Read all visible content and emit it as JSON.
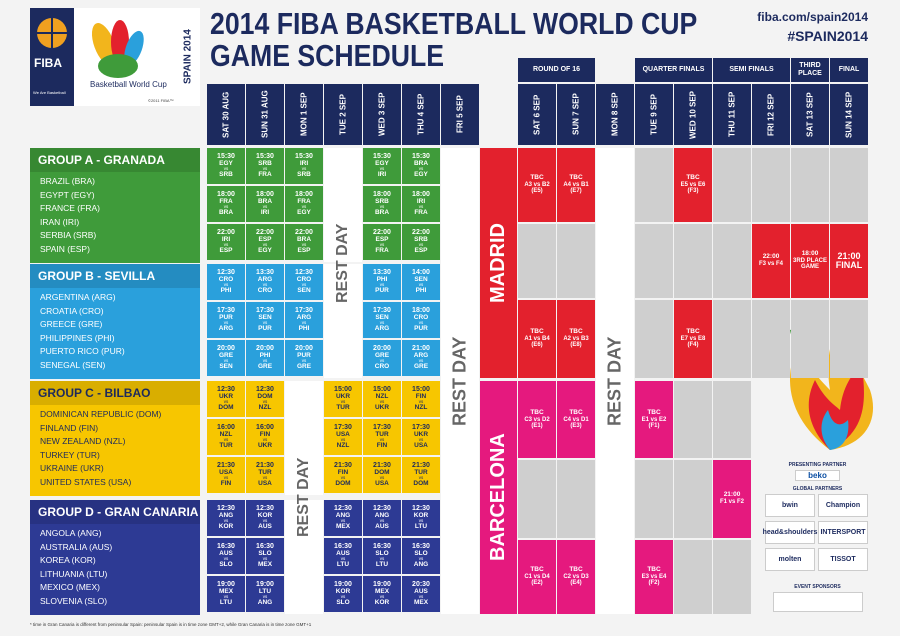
{
  "header": {
    "title_line1": "2014 FIBA BASKETBALL WORLD CUP",
    "title_line2": "GAME SCHEDULE",
    "website": "fiba.com/spain2014",
    "hashtag": "#SPAIN2014",
    "logo": {
      "brand": "FIBA",
      "tagline": "We Are Basketball",
      "event": "Basketball World Cup",
      "host": "SPAIN 2014",
      "copyright": "©2011 FIBA™"
    }
  },
  "rounds": [
    "ROUND OF 16",
    "QUARTER FINALS",
    "SEMI FINALS",
    "THIRD PLACE",
    "FINAL"
  ],
  "days": [
    "SAT 30 AUG",
    "SUN 31 AUG",
    "MON 1 SEP",
    "TUE 2 SEP",
    "WED 3 SEP",
    "THU 4 SEP",
    "FRI 5 SEP",
    "SAT 6 SEP",
    "SUN 7 SEP",
    "MON 8 SEP",
    "TUE 9 SEP",
    "WED 10 SEP",
    "THU 11 SEP",
    "FRI 12 SEP",
    "SAT 13 SEP",
    "SUN 14 SEP"
  ],
  "vs": "vs",
  "rest_day": "REST DAY",
  "groups": [
    {
      "name": "GROUP A - GRANADA",
      "color": "#3f9b3a",
      "text_color": "#ffffff",
      "teams": [
        "BRAZIL (BRA)",
        "EGYPT (EGY)",
        "FRANCE (FRA)",
        "IRAN (IRI)",
        "SERBIA (SRB)",
        "SPAIN (ESP)"
      ],
      "games": [
        [
          {
            "time": "15:30",
            "teams": [
              "EGY",
              "SRB"
            ]
          },
          {
            "time": "18:00",
            "teams": [
              "FRA",
              "BRA"
            ]
          },
          {
            "time": "22:00",
            "teams": [
              "IRI",
              "ESP"
            ]
          }
        ],
        [
          {
            "time": "15:30",
            "teams": [
              "SRB",
              "FRA"
            ]
          },
          {
            "time": "18:00",
            "teams": [
              "BRA",
              "IRI"
            ]
          },
          {
            "time": "22:00",
            "teams": [
              "ESP",
              "EGY"
            ]
          }
        ],
        [
          {
            "time": "15:30",
            "teams": [
              "IRI",
              "SRB"
            ]
          },
          {
            "time": "18:00",
            "teams": [
              "FRA",
              "EGY"
            ]
          },
          {
            "time": "22:00",
            "teams": [
              "BRA",
              "ESP"
            ]
          }
        ],
        null,
        [
          {
            "time": "15:30",
            "teams": [
              "EGY",
              "IRI"
            ]
          },
          {
            "time": "18:00",
            "teams": [
              "SRB",
              "BRA"
            ]
          },
          {
            "time": "22:00",
            "teams": [
              "ESP",
              "FRA"
            ]
          }
        ],
        [
          {
            "time": "15:30",
            "teams": [
              "BRA",
              "EGY"
            ]
          },
          {
            "time": "18:00",
            "teams": [
              "IRI",
              "FRA"
            ]
          },
          {
            "time": "22:00",
            "teams": [
              "SRB",
              "ESP"
            ]
          }
        ]
      ]
    },
    {
      "name": "GROUP B - SEVILLA",
      "color": "#2aa0dc",
      "text_color": "#ffffff",
      "teams": [
        "ARGENTINA (ARG)",
        "CROATIA (CRO)",
        "GREECE (GRE)",
        "PHILIPPINES (PHI)",
        "PUERTO RICO (PUR)",
        "SENEGAL (SEN)"
      ],
      "games": [
        [
          {
            "time": "12:30",
            "teams": [
              "CRO",
              "PHI"
            ]
          },
          {
            "time": "17:30",
            "teams": [
              "PUR",
              "ARG"
            ]
          },
          {
            "time": "20:00",
            "teams": [
              "GRE",
              "SEN"
            ]
          }
        ],
        [
          {
            "time": "13:30",
            "teams": [
              "ARG",
              "CRO"
            ]
          },
          {
            "time": "17:30",
            "teams": [
              "SEN",
              "PUR"
            ]
          },
          {
            "time": "20:00",
            "teams": [
              "PHI",
              "GRE"
            ]
          }
        ],
        [
          {
            "time": "12:30",
            "teams": [
              "CRO",
              "SEN"
            ]
          },
          {
            "time": "17:30",
            "teams": [
              "ARG",
              "PHI"
            ]
          },
          {
            "time": "20:00",
            "teams": [
              "PUR",
              "GRE"
            ]
          }
        ],
        null,
        [
          {
            "time": "13:30",
            "teams": [
              "PHI",
              "PUR"
            ]
          },
          {
            "time": "17:30",
            "teams": [
              "SEN",
              "ARG"
            ]
          },
          {
            "time": "20:00",
            "teams": [
              "GRE",
              "CRO"
            ]
          }
        ],
        [
          {
            "time": "14:00",
            "teams": [
              "SEN",
              "PHI"
            ]
          },
          {
            "time": "18:00",
            "teams": [
              "CRO",
              "PUR"
            ]
          },
          {
            "time": "21:00",
            "teams": [
              "ARG",
              "GRE"
            ]
          }
        ]
      ]
    },
    {
      "name": "GROUP C - BILBAO",
      "color": "#f7c600",
      "text_color": "#1d2a5c",
      "teams": [
        "DOMINICAN REPUBLIC (DOM)",
        "FINLAND (FIN)",
        "NEW ZEALAND (NZL)",
        "TURKEY (TUR)",
        "UKRAINE (UKR)",
        "UNITED STATES (USA)"
      ],
      "games": [
        [
          {
            "time": "12:30",
            "teams": [
              "UKR",
              "DOM"
            ]
          },
          {
            "time": "16:00",
            "teams": [
              "NZL",
              "TUR"
            ]
          },
          {
            "time": "21:30",
            "teams": [
              "USA",
              "FIN"
            ]
          }
        ],
        [
          {
            "time": "12:30",
            "teams": [
              "DOM",
              "NZL"
            ]
          },
          {
            "time": "16:00",
            "teams": [
              "FIN",
              "UKR"
            ]
          },
          {
            "time": "21:30",
            "teams": [
              "TUR",
              "USA"
            ]
          }
        ],
        null,
        [
          {
            "time": "15:00",
            "teams": [
              "UKR",
              "TUR"
            ]
          },
          {
            "time": "17:30",
            "teams": [
              "USA",
              "NZL"
            ]
          },
          {
            "time": "21:30",
            "teams": [
              "FIN",
              "DOM"
            ]
          }
        ],
        [
          {
            "time": "15:00",
            "teams": [
              "NZL",
              "UKR"
            ]
          },
          {
            "time": "17:30",
            "teams": [
              "TUR",
              "FIN"
            ]
          },
          {
            "time": "21:30",
            "teams": [
              "DOM",
              "USA"
            ]
          }
        ],
        [
          {
            "time": "15:00",
            "teams": [
              "FIN",
              "NZL"
            ]
          },
          {
            "time": "17:30",
            "teams": [
              "UKR",
              "USA"
            ]
          },
          {
            "time": "21:30",
            "teams": [
              "TUR",
              "DOM"
            ]
          }
        ]
      ]
    },
    {
      "name": "GROUP D - GRAN CANARIA",
      "color": "#2d3a94",
      "text_color": "#ffffff",
      "teams": [
        "ANGOLA (ANG)",
        "AUSTRALIA (AUS)",
        "KOREA (KOR)",
        "LITHUANIA (LTU)",
        "MEXICO (MEX)",
        "SLOVENIA (SLO)"
      ],
      "games": [
        [
          {
            "time": "12:30",
            "teams": [
              "ANG",
              "KOR"
            ]
          },
          {
            "time": "16:30",
            "teams": [
              "AUS",
              "SLO"
            ]
          },
          {
            "time": "19:00",
            "teams": [
              "MEX",
              "LTU"
            ]
          }
        ],
        [
          {
            "time": "12:30",
            "teams": [
              "KOR",
              "AUS"
            ]
          },
          {
            "time": "16:30",
            "teams": [
              "SLO",
              "MEX"
            ]
          },
          {
            "time": "19:00",
            "teams": [
              "LTU",
              "ANG"
            ]
          }
        ],
        null,
        [
          {
            "time": "12:30",
            "teams": [
              "ANG",
              "MEX"
            ]
          },
          {
            "time": "16:30",
            "teams": [
              "AUS",
              "LTU"
            ]
          },
          {
            "time": "19:00",
            "teams": [
              "KOR",
              "SLO"
            ]
          }
        ],
        [
          {
            "time": "12:30",
            "teams": [
              "ANG",
              "AUS"
            ]
          },
          {
            "time": "16:30",
            "teams": [
              "SLO",
              "LTU"
            ]
          },
          {
            "time": "19:00",
            "teams": [
              "MEX",
              "KOR"
            ]
          }
        ],
        [
          {
            "time": "12:30",
            "teams": [
              "KOR",
              "LTU"
            ]
          },
          {
            "time": "16:30",
            "teams": [
              "SLO",
              "ANG"
            ]
          },
          {
            "time": "20:30",
            "teams": [
              "AUS",
              "MEX"
            ]
          }
        ]
      ]
    }
  ],
  "madrid": {
    "label": "MADRID",
    "color": "#e3212d",
    "round_of_16": [
      {
        "time": "TBC",
        "match": "A3 vs B2",
        "code": "(E5)"
      },
      {
        "time": "TBC",
        "match": "A4 vs B1",
        "code": "(E7)"
      },
      {
        "time": "TBC",
        "match": "A1 vs B4",
        "code": "(E6)"
      },
      {
        "time": "TBC",
        "match": "A2 vs B3",
        "code": "(E8)"
      }
    ],
    "quarter_finals": [
      {
        "time": "TBC",
        "match": "E5 vs E6",
        "code": "(F3)"
      },
      {
        "time": "TBC",
        "match": "E7 vs E8",
        "code": "(F4)"
      }
    ],
    "semi_final": {
      "time": "22:00",
      "match": "F3 vs F4"
    },
    "third_place": {
      "time": "18:00",
      "match": "3RD PLACE GAME"
    },
    "final": {
      "time": "21:00",
      "match": "FINAL"
    }
  },
  "barcelona": {
    "label": "BARCELONA",
    "color": "#e5197e",
    "round_of_16": [
      {
        "time": "TBC",
        "match": "C3 vs D2",
        "code": "(E1)"
      },
      {
        "time": "TBC",
        "match": "C4 vs D1",
        "code": "(E3)"
      },
      {
        "time": "TBC",
        "match": "C1 vs D4",
        "code": "(E2)"
      },
      {
        "time": "TBC",
        "match": "C2 vs D3",
        "code": "(E4)"
      }
    ],
    "quarter_finals": [
      {
        "time": "TBC",
        "match": "E1 vs E2",
        "code": "(F1)"
      },
      {
        "time": "TBC",
        "match": "E3 vs E4",
        "code": "(F2)"
      }
    ],
    "semi_final": {
      "time": "21:00",
      "match": "F1 vs F2"
    }
  },
  "sponsors": {
    "presenting_title": "PRESENTING PARTNER",
    "presenting": "beko",
    "global_title": "GLOBAL PARTNERS",
    "global": [
      "bwin",
      "Champion",
      "head&shoulders",
      "INTERSPORT",
      "molten",
      "TISSOT"
    ],
    "event_title": "EVENT SPONSORS"
  },
  "footnote": "* time in Gran Canaria is different from peninsular Spain: peninsular Spain is in time zone GMT+2, while Gran Canaria is in time zone GMT+1"
}
